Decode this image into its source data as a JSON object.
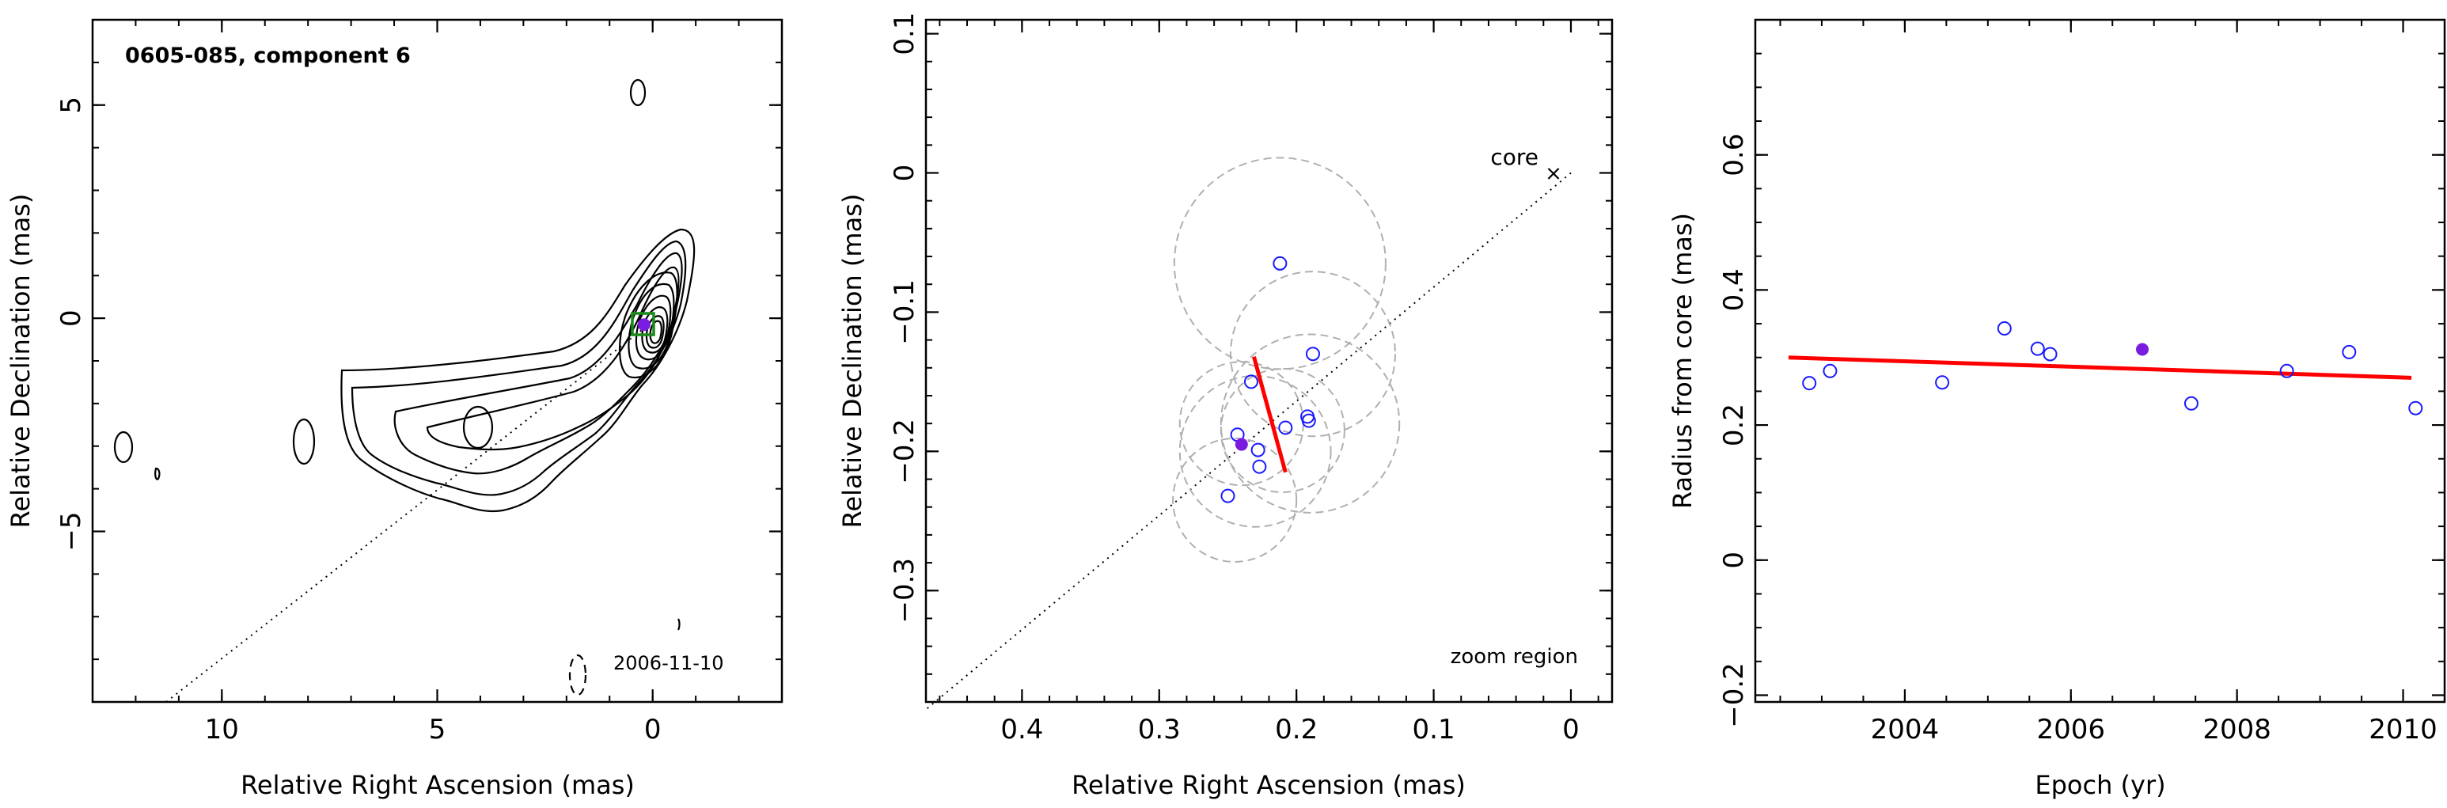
{
  "chart_data": [
    {
      "type": "contour",
      "panel": "left",
      "title": "0605-085, component 6",
      "xlabel": "Relative Right Ascension (mas)",
      "ylabel": "Relative Declination (mas)",
      "xlim": [
        13,
        -3
      ],
      "ylim": [
        -9,
        7
      ],
      "xticks": [
        10,
        5,
        0
      ],
      "yticks": [
        5,
        0,
        -5
      ],
      "annotation": "2006-11-10",
      "component_position": [
        0.2,
        -0.15
      ],
      "contour_levels": 10,
      "line_through_core": true
    },
    {
      "type": "scatter",
      "panel": "middle",
      "xlabel": "Relative Right Ascension (mas)",
      "ylabel": "Relative Declination (mas)",
      "xlim": [
        0.47,
        -0.03
      ],
      "ylim": [
        -0.38,
        0.11
      ],
      "xticks": [
        0.4,
        0.3,
        0.2,
        0.1,
        0
      ],
      "yticks": [
        0.1,
        0,
        -0.1,
        -0.2,
        -0.3
      ],
      "labels": [
        "core",
        "zoom region"
      ],
      "points": [
        {
          "x": 0.212,
          "y": -0.065
        },
        {
          "x": 0.188,
          "y": -0.13
        },
        {
          "x": 0.233,
          "y": -0.15
        },
        {
          "x": 0.192,
          "y": -0.175
        },
        {
          "x": 0.191,
          "y": -0.178
        },
        {
          "x": 0.208,
          "y": -0.183
        },
        {
          "x": 0.243,
          "y": -0.188
        },
        {
          "x": 0.228,
          "y": -0.199
        },
        {
          "x": 0.227,
          "y": -0.211
        },
        {
          "x": 0.25,
          "y": -0.232
        }
      ],
      "highlight": {
        "x": 0.24,
        "y": -0.195
      },
      "uncertainty_circles": [
        {
          "x": 0.212,
          "y": -0.065,
          "r": 0.077
        },
        {
          "x": 0.188,
          "y": -0.13,
          "r": 0.06
        },
        {
          "x": 0.19,
          "y": -0.18,
          "r": 0.065
        },
        {
          "x": 0.23,
          "y": -0.2,
          "r": 0.055
        },
        {
          "x": 0.21,
          "y": -0.185,
          "r": 0.045
        },
        {
          "x": 0.24,
          "y": -0.18,
          "r": 0.045
        },
        {
          "x": 0.245,
          "y": -0.235,
          "r": 0.045
        }
      ],
      "fit_segment": [
        {
          "x": 0.231,
          "y": -0.132
        },
        {
          "x": 0.208,
          "y": -0.215
        }
      ],
      "core_line_slope": 0.82
    },
    {
      "type": "scatter",
      "panel": "right",
      "xlabel": "Epoch (yr)",
      "ylabel": "Radius from core (mas)",
      "xlim": [
        2002.2,
        2010.5
      ],
      "ylim": [
        -0.21,
        0.8
      ],
      "xticks": [
        2004,
        2006,
        2008,
        2010
      ],
      "yticks": [
        -0.2,
        0,
        0.2,
        0.4,
        0.6
      ],
      "points": [
        {
          "x": 2002.85,
          "y": 0.262
        },
        {
          "x": 2003.1,
          "y": 0.28
        },
        {
          "x": 2004.45,
          "y": 0.263
        },
        {
          "x": 2005.2,
          "y": 0.343
        },
        {
          "x": 2005.6,
          "y": 0.313
        },
        {
          "x": 2005.75,
          "y": 0.305
        },
        {
          "x": 2007.45,
          "y": 0.232
        },
        {
          "x": 2008.6,
          "y": 0.28
        },
        {
          "x": 2009.35,
          "y": 0.308
        },
        {
          "x": 2010.15,
          "y": 0.225
        }
      ],
      "highlight": {
        "x": 2006.86,
        "y": 0.312
      },
      "fit_line": [
        {
          "x": 2002.6,
          "y": 0.3
        },
        {
          "x": 2010.1,
          "y": 0.27
        }
      ]
    }
  ]
}
